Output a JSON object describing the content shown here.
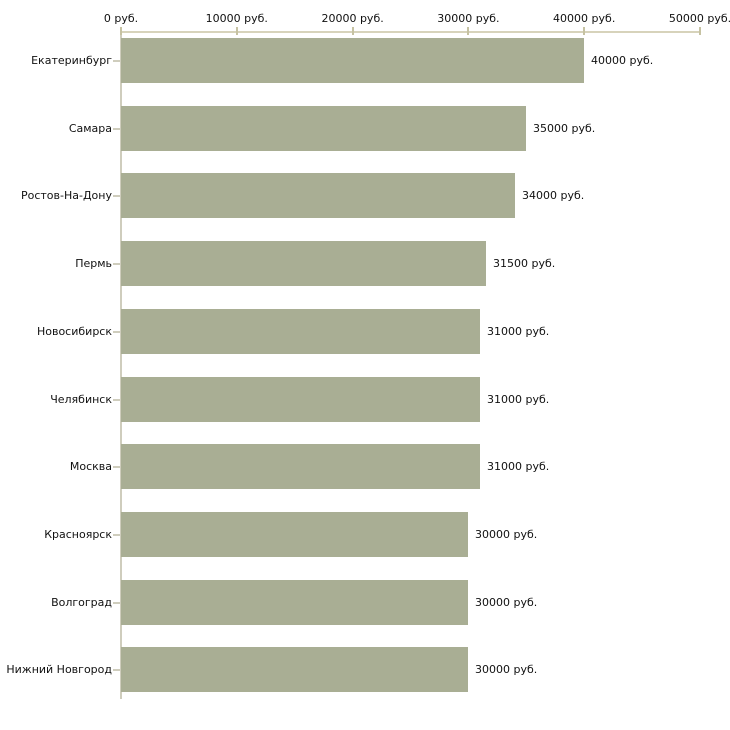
{
  "chart_data": {
    "type": "bar",
    "orientation": "horizontal",
    "title": "",
    "xlabel": "",
    "ylabel": "",
    "categories": [
      "Екатеринбург",
      "Самара",
      "Ростов-На-Дону",
      "Пермь",
      "Новосибирск",
      "Челябинск",
      "Москва",
      "Красноярск",
      "Волгоград",
      "Нижний Новгород"
    ],
    "values": [
      40000,
      35000,
      34000,
      31500,
      31000,
      31000,
      31000,
      30000,
      30000,
      30000
    ],
    "value_labels": [
      "40000 руб.",
      "35000 руб.",
      "34000 руб.",
      "31500 руб.",
      "31000 руб.",
      "31000 руб.",
      "31000 руб.",
      "30000 руб.",
      "30000 руб.",
      "30000 руб."
    ],
    "xlim": [
      0,
      50000
    ],
    "x_axis": {
      "position": "top",
      "ticks": [
        0,
        10000,
        20000,
        30000,
        40000,
        50000
      ],
      "tick_labels": [
        "0 руб.",
        "10000 руб.",
        "20000 руб.",
        "30000 руб.",
        "40000 руб.",
        "50000 руб."
      ]
    },
    "grid": false,
    "legend": false,
    "colors": {
      "bar": "#a9ae94",
      "axis_line": "#d7d3bb",
      "tick_mark": "#c6c2a2",
      "category_axis_line": "#cfcdbd",
      "category_tick": "#cfcdbd",
      "text": "#111111",
      "background": "#ffffff"
    }
  }
}
